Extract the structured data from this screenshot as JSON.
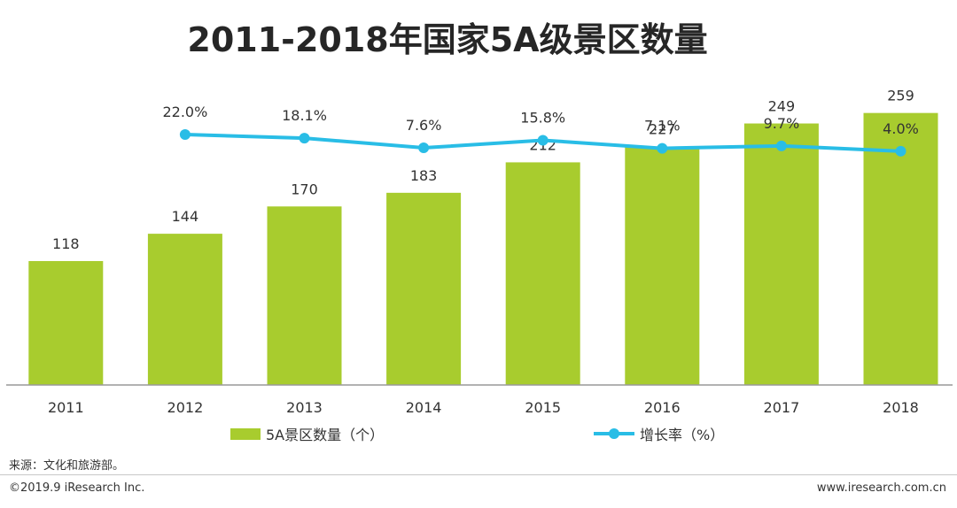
{
  "title": "2011-2018年国家5A级景区数量",
  "colors": {
    "bar": "#a8cc2e",
    "line": "#29bde6",
    "axis": "#999999"
  },
  "chart_data": {
    "type": "bar",
    "categories": [
      "2011",
      "2012",
      "2013",
      "2014",
      "2015",
      "2016",
      "2017",
      "2018"
    ],
    "series": [
      {
        "name": "5A景区数量（个）",
        "type": "bar",
        "values": [
          118,
          144,
          170,
          183,
          212,
          227,
          249,
          259
        ]
      },
      {
        "name": "增长率（%）",
        "type": "line",
        "values": [
          null,
          22.0,
          18.1,
          7.6,
          15.8,
          7.1,
          9.7,
          4.0
        ],
        "labels": [
          "",
          "22.0%",
          "18.1%",
          "7.6%",
          "15.8%",
          "7.1%",
          "9.7%",
          "4.0%"
        ]
      }
    ],
    "bar_labels": [
      "118",
      "144",
      "170",
      "183",
      "212",
      "227",
      "249",
      "259"
    ],
    "ylim": [
      0,
      300
    ],
    "line_ylim": [
      0,
      22.0
    ],
    "legend_position": "bottom",
    "grid": false
  },
  "legend": {
    "bar_label": "5A景区数量（个）",
    "line_label": "增长率（%）"
  },
  "source": "来源：文化和旅游部。",
  "copyright": "©2019.9 iResearch Inc.",
  "website": "www.iresearch.com.cn"
}
